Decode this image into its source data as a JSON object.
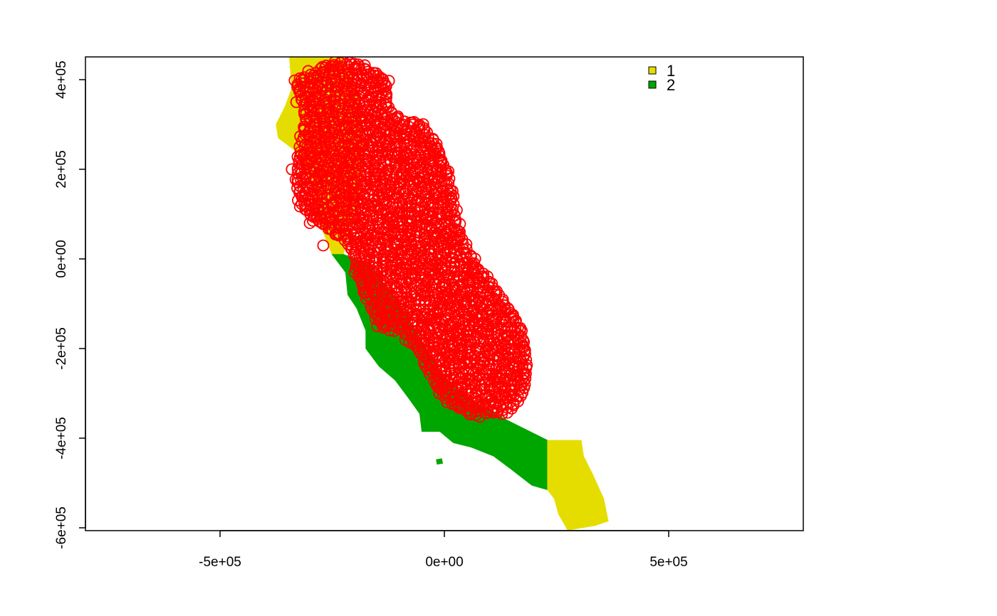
{
  "chart_data": {
    "type": "map",
    "title": "",
    "xlabel": "",
    "ylabel": "",
    "xlim": [
      -800000,
      800000
    ],
    "ylim": [
      -600000,
      450000
    ],
    "x_ticks": [
      {
        "value": -500000,
        "label": "-5e+05"
      },
      {
        "value": 0,
        "label": "0e+00"
      },
      {
        "value": 500000,
        "label": "5e+05"
      }
    ],
    "y_ticks": [
      {
        "value": -600000,
        "label": "-6e+05"
      },
      {
        "value": -400000,
        "label": "-4e+05"
      },
      {
        "value": -200000,
        "label": "-2e+05"
      },
      {
        "value": 0,
        "label": "0e+00"
      },
      {
        "value": 200000,
        "label": "2e+05"
      },
      {
        "value": 400000,
        "label": "4e+05"
      }
    ],
    "legend": {
      "placement": "top-right",
      "entries": [
        {
          "label": "1",
          "color": "#e6dd00"
        },
        {
          "label": "2",
          "color": "#00a600"
        }
      ]
    },
    "raster_regions": [
      {
        "class": "1",
        "color": "#e6dd00",
        "polygon": [
          [
            -345000,
            450000
          ],
          [
            -225000,
            450000
          ],
          [
            -205000,
            400000
          ],
          [
            -185000,
            330000
          ],
          [
            -180000,
            250000
          ],
          [
            -190000,
            150000
          ],
          [
            -215000,
            60000
          ],
          [
            -225000,
            10000
          ],
          [
            -250000,
            10000
          ],
          [
            -270000,
            60000
          ],
          [
            -300000,
            180000
          ],
          [
            -330000,
            240000
          ],
          [
            -370000,
            270000
          ],
          [
            -375000,
            300000
          ],
          [
            -355000,
            340000
          ],
          [
            -340000,
            380000
          ],
          [
            -345000,
            450000
          ]
        ]
      },
      {
        "class": "2",
        "color": "#00a600",
        "polygon": [
          [
            -250000,
            10000
          ],
          [
            -225000,
            10000
          ],
          [
            -170000,
            -10000
          ],
          [
            -100000,
            -100000
          ],
          [
            -40000,
            -200000
          ],
          [
            10000,
            -280000
          ],
          [
            70000,
            -320000
          ],
          [
            140000,
            -360000
          ],
          [
            200000,
            -390000
          ],
          [
            230000,
            -405000
          ],
          [
            230000,
            -515000
          ],
          [
            195000,
            -505000
          ],
          [
            150000,
            -470000
          ],
          [
            110000,
            -440000
          ],
          [
            60000,
            -420000
          ],
          [
            20000,
            -410000
          ],
          [
            -10000,
            -385000
          ],
          [
            -50000,
            -385000
          ],
          [
            -55000,
            -345000
          ],
          [
            -80000,
            -310000
          ],
          [
            -110000,
            -270000
          ],
          [
            -145000,
            -240000
          ],
          [
            -175000,
            -200000
          ],
          [
            -175000,
            -160000
          ],
          [
            -195000,
            -110000
          ],
          [
            -215000,
            -80000
          ],
          [
            -220000,
            -30000
          ],
          [
            -250000,
            10000
          ]
        ]
      },
      {
        "class": "1",
        "color": "#e6dd00",
        "polygon": [
          [
            230000,
            -405000
          ],
          [
            305000,
            -405000
          ],
          [
            310000,
            -440000
          ],
          [
            330000,
            -480000
          ],
          [
            355000,
            -535000
          ],
          [
            365000,
            -585000
          ],
          [
            335000,
            -595000
          ],
          [
            275000,
            -605000
          ],
          [
            255000,
            -570000
          ],
          [
            245000,
            -535000
          ],
          [
            230000,
            -515000
          ],
          [
            230000,
            -405000
          ]
        ]
      },
      {
        "class": "2",
        "color": "#00a600",
        "polygon": [
          [
            -18000,
            -448000
          ],
          [
            -6000,
            -446000
          ],
          [
            -4000,
            -456000
          ],
          [
            -16000,
            -458000
          ],
          [
            -18000,
            -448000
          ]
        ]
      }
    ],
    "points": {
      "color": "#ff0000",
      "symbol": "open-circle",
      "outline": [
        [
          -330000,
          400000
        ],
        [
          -290000,
          420000
        ],
        [
          -230000,
          440000
        ],
        [
          -180000,
          430000
        ],
        [
          -125000,
          395000
        ],
        [
          -130000,
          350000
        ],
        [
          -100000,
          310000
        ],
        [
          -50000,
          300000
        ],
        [
          -20000,
          260000
        ],
        [
          5000,
          200000
        ],
        [
          20000,
          120000
        ],
        [
          40000,
          40000
        ],
        [
          70000,
          -10000
        ],
        [
          100000,
          -50000
        ],
        [
          150000,
          -120000
        ],
        [
          175000,
          -170000
        ],
        [
          185000,
          -240000
        ],
        [
          175000,
          -300000
        ],
        [
          140000,
          -340000
        ],
        [
          70000,
          -350000
        ],
        [
          10000,
          -320000
        ],
        [
          -20000,
          -280000
        ],
        [
          -60000,
          -200000
        ],
        [
          -100000,
          -160000
        ],
        [
          -140000,
          -150000
        ],
        [
          -160000,
          -110000
        ],
        [
          -185000,
          -60000
        ],
        [
          -200000,
          0
        ],
        [
          -215000,
          40000
        ],
        [
          -250000,
          60000
        ],
        [
          -290000,
          90000
        ],
        [
          -320000,
          120000
        ],
        [
          -330000,
          180000
        ],
        [
          -320000,
          260000
        ],
        [
          -310000,
          320000
        ],
        [
          -330000,
          400000
        ]
      ]
    }
  }
}
